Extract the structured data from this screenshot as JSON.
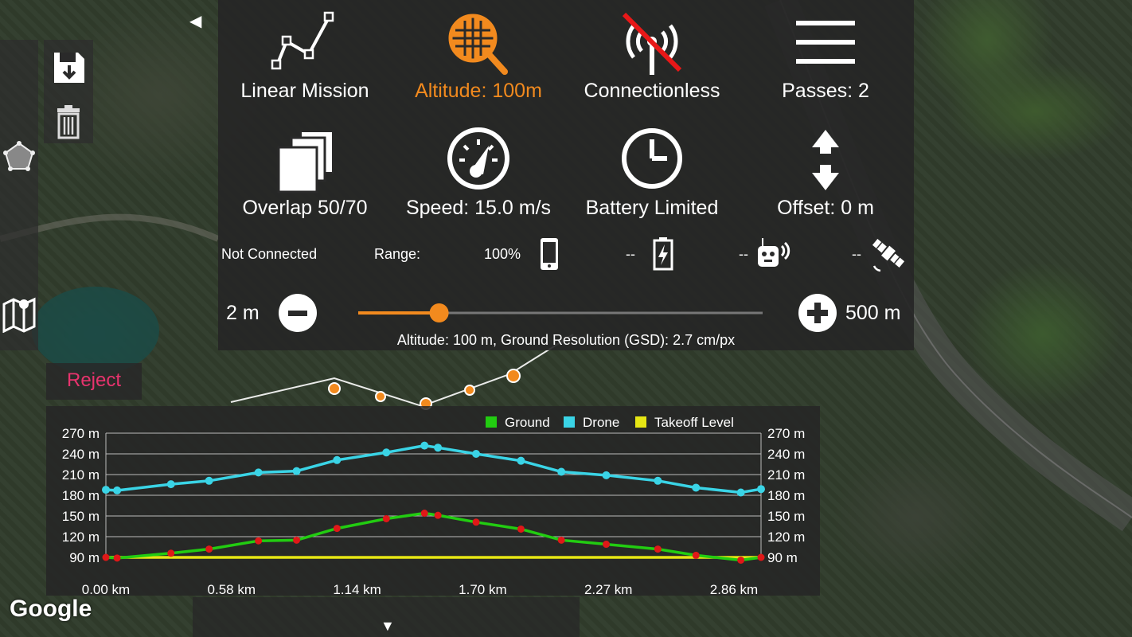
{
  "map": {
    "attribution": "Google"
  },
  "left_toolbar": {
    "items": [
      {
        "name": "polygon-tool",
        "icon": "pentagon-icon"
      },
      {
        "name": "map-layers",
        "icon": "map-icon"
      }
    ]
  },
  "file_tools": {
    "items": [
      {
        "name": "save",
        "icon": "save-icon"
      },
      {
        "name": "delete",
        "icon": "trash-icon"
      }
    ]
  },
  "collapse_arrow": "◀",
  "expand_arrow": "▼",
  "tools": {
    "mission_type": "Linear Mission",
    "altitude": "Altitude: 100m",
    "connection": "Connectionless",
    "passes": "Passes: 2",
    "overlap": "Overlap 50/70",
    "speed": "Speed: 15.0 m/s",
    "battery": "Battery Limited",
    "offset": "Offset: 0 m"
  },
  "status": {
    "connection": "Not Connected",
    "range_label": "Range:",
    "phone_battery": "100%",
    "drone_battery": "--",
    "remote": "--",
    "gps": "--"
  },
  "slider": {
    "min_label": "2 m",
    "max_label": "500 m",
    "value_fraction": 0.2,
    "caption": "Altitude: 100 m, Ground Resolution (GSD): 2.7 cm/px"
  },
  "reject_label": "Reject",
  "colors": {
    "accent": "#f28a1e",
    "reject": "#e8336e",
    "ground": "#22cc11",
    "drone": "#3ad4e6",
    "takeoff": "#e6e614"
  },
  "chart_data": {
    "type": "line",
    "legend": [
      "Ground",
      "Drone",
      "Takeoff Level"
    ],
    "legend_position": "top-right",
    "y_ticks": [
      "270 m",
      "240 m",
      "210 m",
      "180 m",
      "150 m",
      "120 m",
      "90 m"
    ],
    "x_ticks": [
      "0.00 km",
      "0.58 km",
      "1.14 km",
      "1.70 km",
      "2.27 km",
      "2.86 km"
    ],
    "ylim": [
      90,
      270
    ],
    "xlim": [
      0,
      2.92
    ],
    "grid": true,
    "series": [
      {
        "name": "Drone",
        "x": [
          0.0,
          0.05,
          0.29,
          0.46,
          0.68,
          0.85,
          1.03,
          1.25,
          1.42,
          1.48,
          1.65,
          1.85,
          2.03,
          2.23,
          2.46,
          2.63,
          2.83,
          2.92
        ],
        "y": [
          188,
          187,
          196,
          201,
          213,
          215,
          231,
          242,
          252,
          249,
          240,
          230,
          214,
          209,
          201,
          191,
          184,
          189
        ]
      },
      {
        "name": "Ground",
        "x": [
          0.0,
          0.05,
          0.29,
          0.46,
          0.68,
          0.85,
          1.03,
          1.25,
          1.42,
          1.48,
          1.65,
          1.85,
          2.03,
          2.23,
          2.46,
          2.63,
          2.83,
          2.92
        ],
        "y": [
          90,
          89,
          96,
          102,
          114,
          115,
          132,
          146,
          154,
          151,
          141,
          131,
          115,
          109,
          102,
          93,
          86,
          90
        ]
      },
      {
        "name": "Takeoff Level",
        "x": [
          0.0,
          2.92
        ],
        "y": [
          90,
          90
        ]
      }
    ]
  }
}
